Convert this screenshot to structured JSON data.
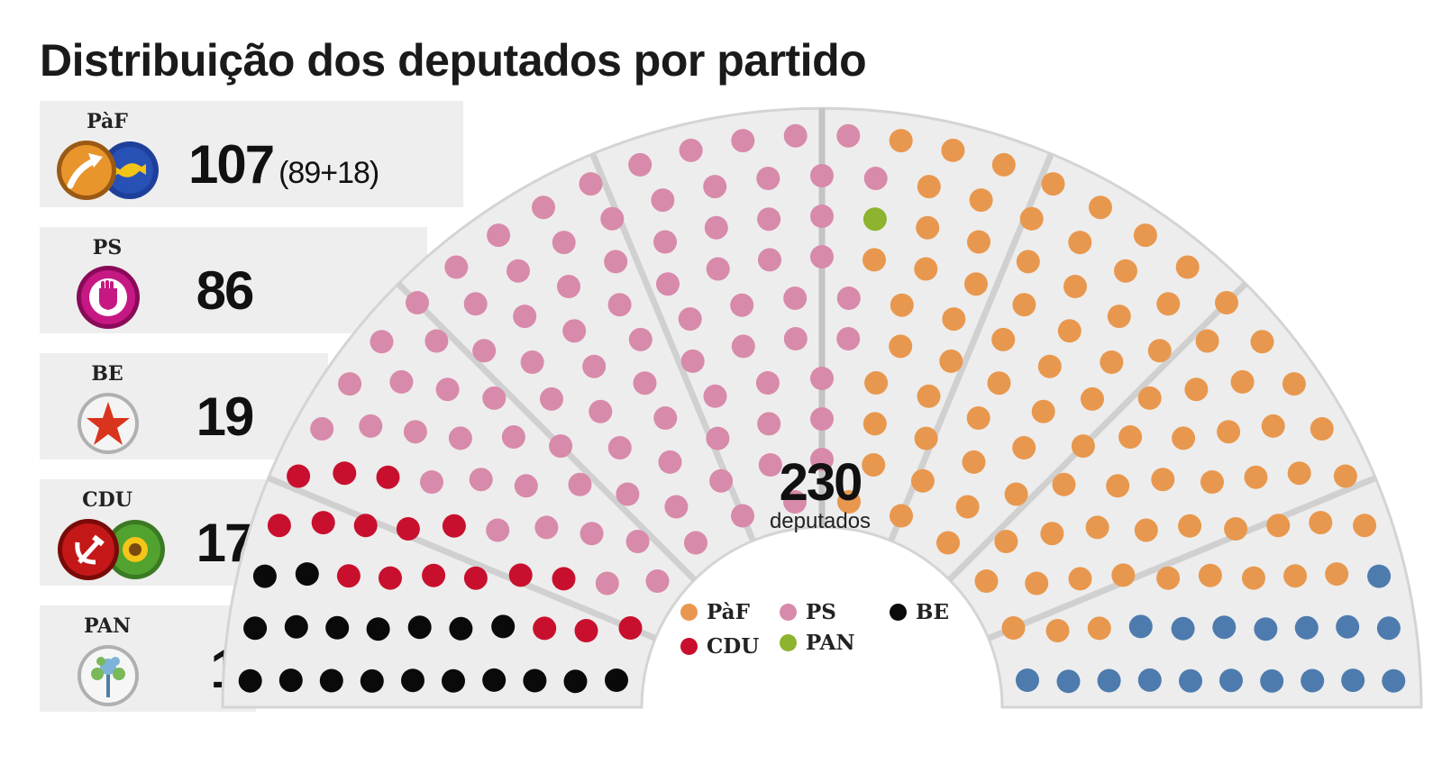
{
  "title": "Distribuição dos deputados por partido",
  "parties": [
    {
      "abbr": "PàF",
      "seats": "107",
      "note": "(89+18)",
      "icon": "paf-logo-icon"
    },
    {
      "abbr": "PS",
      "seats": "86",
      "note": "",
      "icon": "ps-logo-icon"
    },
    {
      "abbr": "BE",
      "seats": "19",
      "note": "",
      "icon": "be-logo-icon"
    },
    {
      "abbr": "CDU",
      "seats": "17",
      "note": "",
      "icon": "cdu-logo-icon"
    },
    {
      "abbr": "PAN",
      "seats": "1",
      "note": "",
      "icon": "pan-logo-icon"
    }
  ],
  "total": {
    "value": "230",
    "label": "deputados"
  },
  "legend": [
    {
      "label": "PàF",
      "color": "#e8984e"
    },
    {
      "label": "PS",
      "color": "#d88aaa"
    },
    {
      "label": "BE",
      "color": "#0a0a0a"
    },
    {
      "label": "CDU",
      "color": "#c8102e"
    },
    {
      "label": "PAN",
      "color": "#8db32f"
    }
  ],
  "chart_data": {
    "type": "hemicycle",
    "total_seats": 230,
    "series": [
      {
        "name": "PàF",
        "value": 107,
        "components": [
          89,
          18
        ],
        "color": "#e8984e",
        "secondary_color": "#4e7bae"
      },
      {
        "name": "PS",
        "value": 86,
        "color": "#d88aaa"
      },
      {
        "name": "BE",
        "value": 19,
        "color": "#0a0a0a"
      },
      {
        "name": "CDU",
        "value": 17,
        "color": "#c8102e"
      },
      {
        "name": "PAN",
        "value": 1,
        "color": "#8db32f"
      }
    ]
  }
}
